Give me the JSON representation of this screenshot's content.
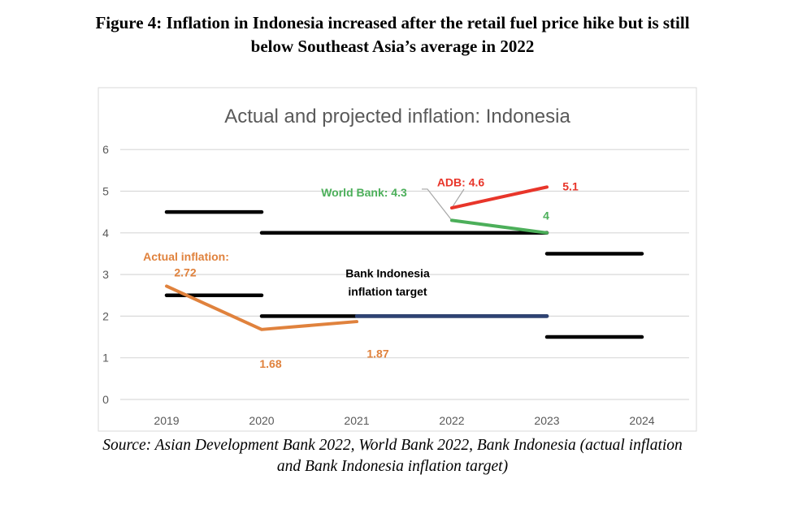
{
  "figure_title_line1": "Figure 4: Inflation in Indonesia increased after the retail fuel price hike but is still",
  "figure_title_line2": "below Southeast Asia’s average in 2022",
  "source_line1": "Source: Asian Development Bank 2022, World Bank 2022, Bank Indonesia (actual inflation",
  "source_line2": "and Bank Indonesia inflation target)",
  "chart_data": {
    "type": "line",
    "title": "Actual and projected inflation: Indonesia",
    "xlabel": "",
    "ylabel": "",
    "categories": [
      "2019",
      "2020",
      "2021",
      "2022",
      "2023",
      "2024"
    ],
    "ylim": [
      0,
      6
    ],
    "yticks": [
      0,
      1,
      2,
      3,
      4,
      5,
      6
    ],
    "grid": true,
    "series": [
      {
        "key": "actual",
        "x": [
          "2019",
          "2020",
          "2021"
        ],
        "values": [
          2.72,
          1.68,
          1.87
        ],
        "color": "#E0823D"
      },
      {
        "key": "worldbank",
        "x": [
          "2022",
          "2023"
        ],
        "values": [
          4.3,
          4
        ],
        "color": "#4CAF5A"
      },
      {
        "key": "adb",
        "x": [
          "2022",
          "2023"
        ],
        "values": [
          4.6,
          5.1
        ],
        "color": "#E8352A"
      }
    ],
    "target_bands": [
      {
        "from": "2019",
        "to": "2020",
        "upper": 4.5,
        "lower": 2.5
      },
      {
        "from": "2020",
        "to": "2023",
        "upper": 4,
        "lower": 2
      },
      {
        "from": "2023",
        "to": "2024",
        "upper": 3.5,
        "lower": 1.5
      }
    ],
    "target_lower_highlight": {
      "from": "2021",
      "to": "2023",
      "value": 2,
      "color": "#2E4374"
    },
    "annotations": {
      "actual_label": "Actual inflation:",
      "actual_2019": "2.72",
      "actual_2020": "1.68",
      "actual_2021": "1.87",
      "worldbank_2022": "World Bank: 4.3",
      "worldbank_2023": "4",
      "adb_2022": "ADB: 4.6",
      "adb_2023": "5.1",
      "target_line1": "Bank Indonesia",
      "target_line2": "inflation target"
    }
  }
}
